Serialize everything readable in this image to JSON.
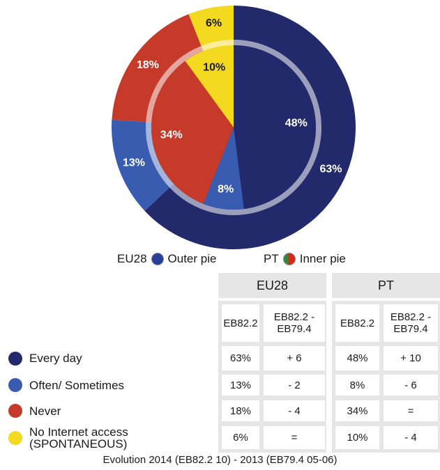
{
  "chart_data": {
    "type": "pie",
    "categories": [
      "Every day",
      "Often/ Sometimes",
      "Never",
      "No Internet access (SPONTANEOUS)"
    ],
    "colors": [
      "#232a6b",
      "#3a5cb0",
      "#c63a2a",
      "#f4d921"
    ],
    "series": [
      {
        "name": "EU28",
        "ring": "Outer pie",
        "values": [
          63,
          13,
          18,
          6
        ],
        "value_labels": [
          "63%",
          "13%",
          "18%",
          "6%"
        ],
        "changes": [
          "+ 6",
          "- 2",
          "- 4",
          "="
        ]
      },
      {
        "name": "PT",
        "ring": "Inner pie",
        "values": [
          48,
          8,
          34,
          10
        ],
        "value_labels": [
          "48%",
          "8%",
          "34%",
          "10%"
        ],
        "changes": [
          "+ 10",
          "- 6",
          "=",
          "- 4"
        ]
      }
    ],
    "column_headers": [
      "EB82.2",
      "EB82.2 - EB79.4"
    ],
    "footnote": "Evolution 2014 (EB82.2 10) - 2013 (EB79.4 05-06)"
  }
}
